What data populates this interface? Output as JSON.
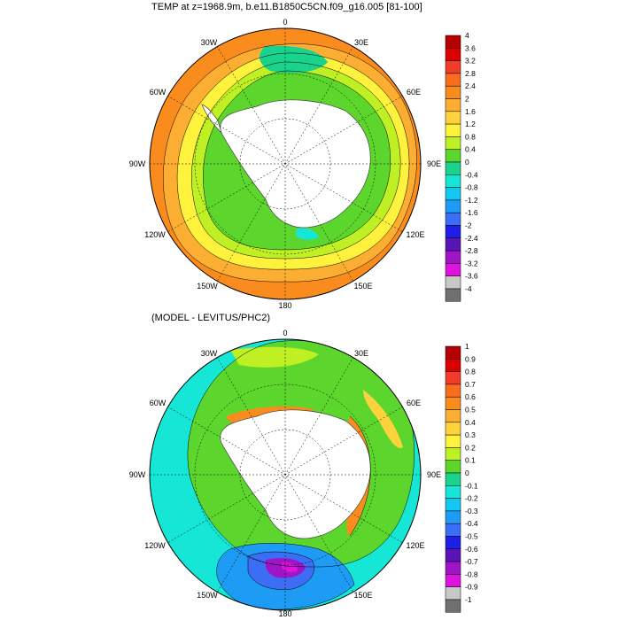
{
  "panels": [
    {
      "id": "temp",
      "title": "TEMP at z=1968.9m, b.e11.B1850C5CN.f09_g16.005 [81-100]",
      "lon_labels": {
        "n": "0",
        "ne": "30E",
        "e1": "60E",
        "e": "90E",
        "se1": "120E",
        "se": "150E",
        "s": "180",
        "sw": "150W",
        "sw1": "120W",
        "w": "90W",
        "nw1": "60W",
        "nw": "30W"
      },
      "colorbar": {
        "labels": [
          "4",
          "3.6",
          "3.2",
          "2.8",
          "2.4",
          "2",
          "1.6",
          "1.2",
          "0.8",
          "0.4",
          "0",
          "-0.4",
          "-0.8",
          "-1.2",
          "-1.6",
          "-2",
          "-2.4",
          "-2.8",
          "-3.2",
          "-3.6",
          "-4"
        ],
        "colors": [
          "#b40000",
          "#dd0000",
          "#f03c28",
          "#f86c1e",
          "#fa8c1e",
          "#fcae32",
          "#fdd23c",
          "#fff23c",
          "#bef023",
          "#5cd52c",
          "#19d28c",
          "#15e6d6",
          "#13c8f0",
          "#1e9bf5",
          "#3c6ef5",
          "#1e1ee6",
          "#5a14b4",
          "#a014c8",
          "#dc14dc",
          "#c8c8c8",
          "#707070"
        ]
      }
    },
    {
      "id": "diff",
      "title": "(MODEL - LEVITUS/PHC2)",
      "lon_labels": {
        "n": "0",
        "ne": "30E",
        "e1": "60E",
        "e": "90E",
        "se1": "120E",
        "se": "150E",
        "s": "180",
        "sw": "150W",
        "sw1": "120W",
        "w": "90W",
        "nw1": "60W",
        "nw": "30W"
      },
      "colorbar": {
        "labels": [
          "1",
          "0.9",
          "0.8",
          "0.7",
          "0.6",
          "0.5",
          "0.4",
          "0.3",
          "0.2",
          "0.1",
          "0",
          "-0.1",
          "-0.2",
          "-0.3",
          "-0.4",
          "-0.5",
          "-0.6",
          "-0.7",
          "-0.8",
          "-0.9",
          "-1"
        ],
        "colors": [
          "#b40000",
          "#dd0000",
          "#f03c28",
          "#f86c1e",
          "#fa8c1e",
          "#fcae32",
          "#fdd23c",
          "#fff23c",
          "#bef023",
          "#5cd52c",
          "#19d28c",
          "#15e6d6",
          "#13c8f0",
          "#1e9bf5",
          "#3c6ef5",
          "#1e1ee6",
          "#5a14b4",
          "#a014c8",
          "#dc14dc",
          "#c8c8c8",
          "#707070"
        ]
      }
    }
  ]
}
